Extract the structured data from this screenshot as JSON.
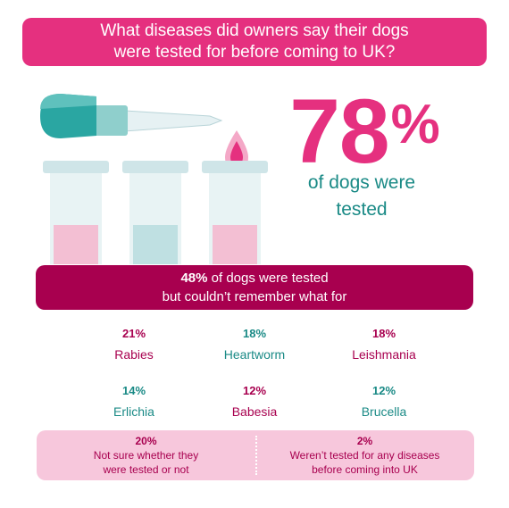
{
  "title": {
    "line1": "What diseases did owners say their dogs",
    "line2": "were tested for before coming to UK?"
  },
  "headline": {
    "value": "78",
    "unit": "%",
    "sub_line1": "of dogs were",
    "sub_line2": "tested"
  },
  "unsure_banner": {
    "value": "48%",
    "line1_rest": " of dogs were tested",
    "line2": "but couldn’t remember what for"
  },
  "diseases": [
    {
      "value": "21%",
      "label": "Rabies",
      "color": "#a8004f"
    },
    {
      "value": "18%",
      "label": "Heartworm",
      "color": "#1a8a86"
    },
    {
      "value": "18%",
      "label": "Leishmania",
      "color": "#a8004f"
    },
    {
      "value": "14%",
      "label": "Erlichia",
      "color": "#1a8a86"
    },
    {
      "value": "12%",
      "label": "Babesia",
      "color": "#a8004f"
    },
    {
      "value": "12%",
      "label": "Brucella",
      "color": "#1a8a86"
    }
  ],
  "footer": {
    "left": {
      "value": "20%",
      "line1": "Not sure whether they",
      "line2": "were tested or not"
    },
    "right": {
      "value": "2%",
      "line1": "Weren’t tested for any diseases",
      "line2": "before coming into UK"
    }
  },
  "colors": {
    "pink": "#e5307f",
    "magenta": "#a8004f",
    "teal": "#1a8a86",
    "light_pink": "#f7c7dc"
  },
  "icons": [
    "dropper-icon",
    "test-tube-icon",
    "droplet-icon"
  ]
}
